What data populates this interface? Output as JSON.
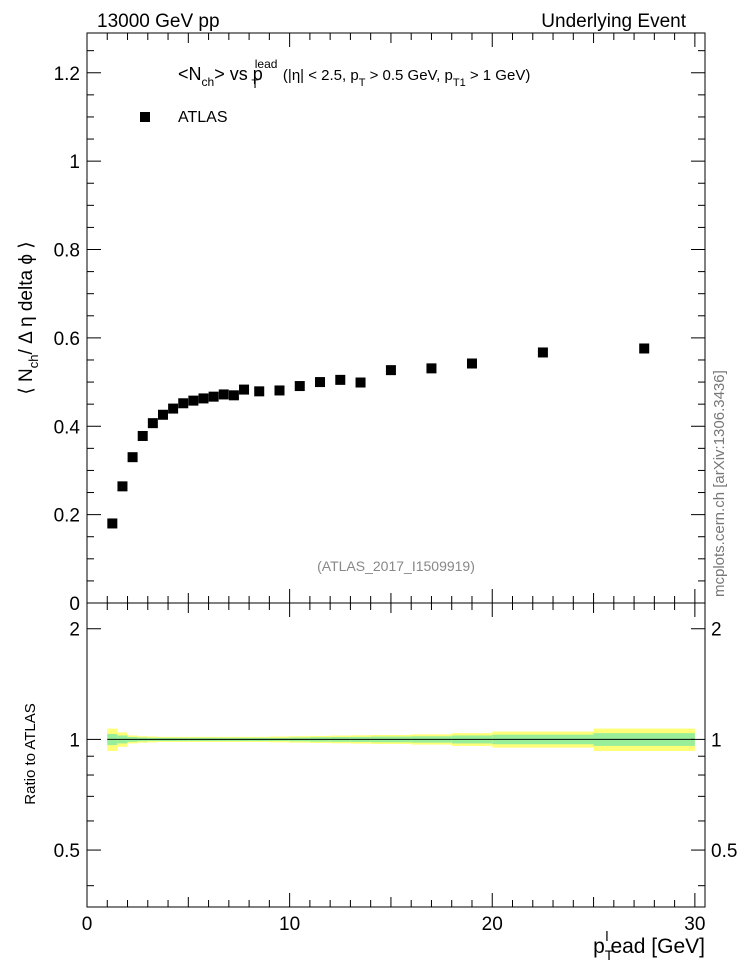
{
  "header": {
    "left": "13000 GeV pp",
    "right": "Underlying Event"
  },
  "side_label": "mcplots.cern.ch [arXiv:1306.3436]",
  "chart_data": [
    {
      "type": "scatter",
      "title": "<N_ch> vs p_T^lead (|η| < 2.5, p_T > 0.5 GeV, p_T1 > 1 GeV)",
      "ylabel": "⟨ N_ch / Δ η delta ϕ ⟩",
      "xlim": [
        0,
        30.5
      ],
      "ylim": [
        0,
        1.29
      ],
      "yticks": [
        0,
        0.2,
        0.4,
        0.6,
        0.8,
        1,
        1.2
      ],
      "ytick_labels": [
        "0",
        "0.2",
        "0.4",
        "0.6",
        "0.8",
        "1",
        "1.2"
      ],
      "legend_position": "top-left",
      "watermark": "(ATLAS_2017_I1509919)",
      "series": [
        {
          "name": "ATLAS",
          "color": "#000000",
          "x": [
            1.25,
            1.75,
            2.25,
            2.75,
            3.25,
            3.75,
            4.25,
            4.75,
            5.25,
            5.75,
            6.25,
            6.75,
            7.25,
            7.75,
            8.5,
            9.5,
            10.5,
            11.5,
            12.5,
            13.5,
            15.0,
            17.0,
            19.0,
            22.5,
            27.5
          ],
          "y": [
            0.18,
            0.264,
            0.33,
            0.378,
            0.407,
            0.426,
            0.44,
            0.452,
            0.458,
            0.463,
            0.467,
            0.472,
            0.47,
            0.483,
            0.479,
            0.481,
            0.491,
            0.5,
            0.505,
            0.499,
            0.527,
            0.531,
            0.542,
            0.567,
            0.576
          ]
        }
      ]
    },
    {
      "type": "area",
      "ylabel": "Ratio to ATLAS",
      "xlabel": "p_T^lead [GeV]",
      "xlim": [
        0,
        30.5
      ],
      "ylim": [
        0.35,
        2.35
      ],
      "yticks": [
        0.5,
        1,
        2
      ],
      "ytick_labels": [
        "0.5",
        "1",
        "2"
      ],
      "xticks": [
        0,
        10,
        20,
        30
      ],
      "xtick_labels": [
        "0",
        "10",
        "20",
        "30"
      ],
      "reference": 1,
      "bands": {
        "edges": [
          1,
          1.5,
          2,
          2.5,
          3,
          3.5,
          4,
          4.5,
          5,
          5.5,
          6,
          6.5,
          7,
          7.5,
          8,
          9,
          10,
          11,
          12,
          13,
          14,
          16,
          18,
          20,
          25,
          30
        ],
        "inner": [
          0.035,
          0.025,
          0.015,
          0.012,
          0.01,
          0.01,
          0.01,
          0.01,
          0.01,
          0.01,
          0.01,
          0.01,
          0.01,
          0.01,
          0.01,
          0.01,
          0.012,
          0.014,
          0.015,
          0.016,
          0.018,
          0.02,
          0.025,
          0.03,
          0.04
        ],
        "outer": [
          0.07,
          0.045,
          0.025,
          0.02,
          0.018,
          0.016,
          0.016,
          0.016,
          0.016,
          0.016,
          0.016,
          0.016,
          0.016,
          0.016,
          0.016,
          0.018,
          0.02,
          0.022,
          0.024,
          0.026,
          0.028,
          0.032,
          0.04,
          0.05,
          0.07
        ],
        "inner_color": "#99ee99",
        "outer_color": "#ffff77"
      }
    }
  ]
}
